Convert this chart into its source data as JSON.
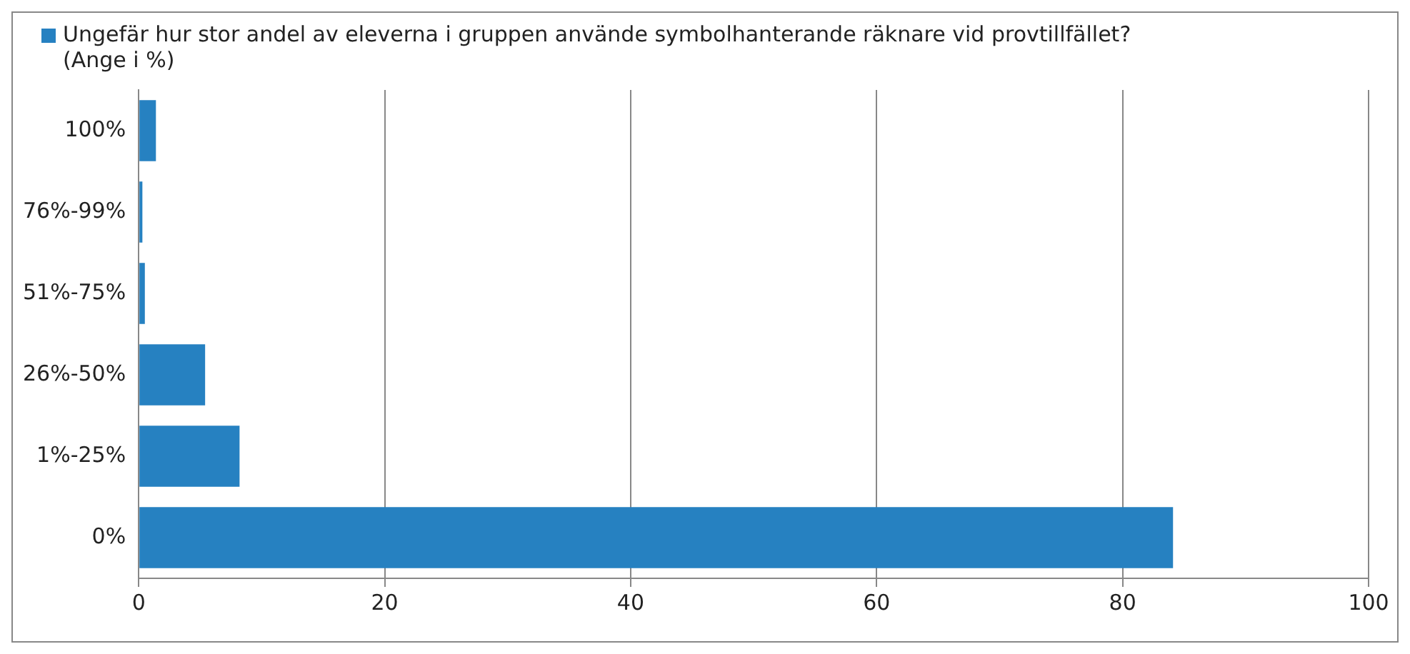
{
  "chart_data": {
    "type": "bar",
    "orientation": "horizontal",
    "categories": [
      "100%",
      "76%-99%",
      "51%-75%",
      "26%-50%",
      "1%-25%",
      "0%"
    ],
    "series": [
      {
        "name": "Ungefär hur stor andel av eleverna i gruppen använde symbolhanterande räknare vid provtillfället? (Ange i %)",
        "color": "#2681c1",
        "values": [
          1.4,
          0.3,
          0.5,
          5.4,
          8.2,
          84.1
        ]
      }
    ],
    "xlim": [
      0,
      100
    ],
    "xticks": [
      0,
      20,
      40,
      60,
      80,
      100
    ],
    "grid": "x",
    "legend": "top left"
  }
}
